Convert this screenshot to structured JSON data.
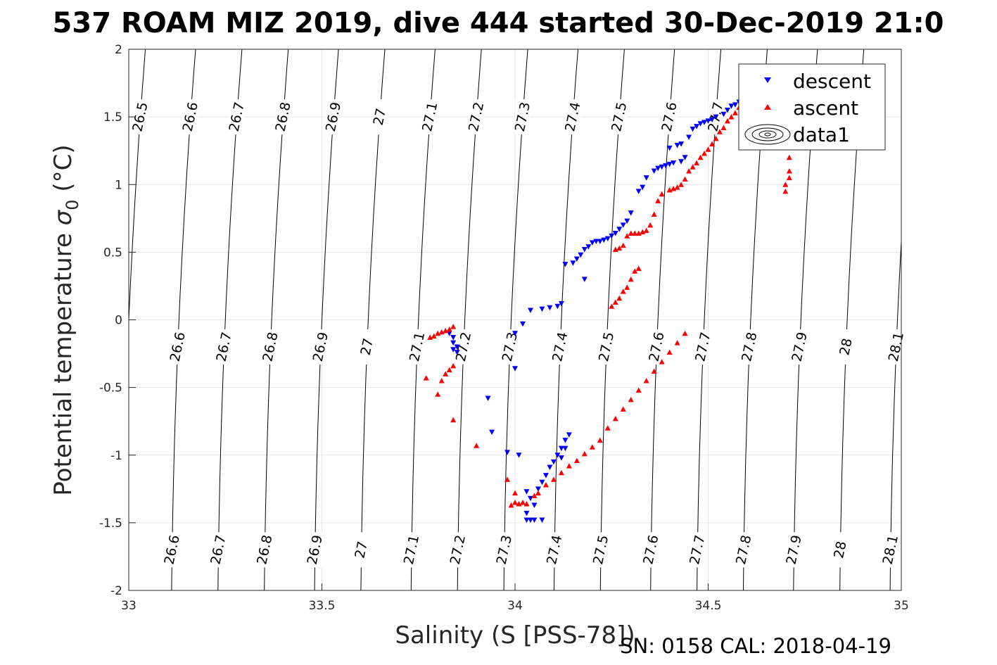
{
  "figure": {
    "title": "537 ROAM MIZ 2019, dive 444 started 30-Dec-2019 21:0",
    "footer": "SN: 0158  CAL: 2018-04-19"
  },
  "chart_data": {
    "type": "scatter",
    "title": "537 ROAM MIZ 2019, dive 444 started 30-Dec-2019 21:0",
    "xlabel": "Salinity (S [PSS-78])",
    "ylabel_main": "Potential temperature ",
    "ylabel_sigma": "σ",
    "ylabel_sub": "0",
    "ylabel_unit": " (°C)",
    "xlim": [
      33,
      35
    ],
    "ylim": [
      -2,
      2
    ],
    "xticks": [
      "33",
      "33.5",
      "34",
      "34.5",
      "35"
    ],
    "yticks": [
      "-2",
      "-1.5",
      "-1",
      "-0.5",
      "0",
      "0.5",
      "1",
      "1.5",
      "2"
    ],
    "grid": true,
    "legend_position": "top-right",
    "legend": [
      "descent",
      "ascent",
      "data1"
    ],
    "series": [
      {
        "name": "descent",
        "marker": "triangle-down",
        "color": "#0000ff",
        "points": [
          [
            34.62,
            1.64
          ],
          [
            34.6,
            1.63
          ],
          [
            34.58,
            1.61
          ],
          [
            34.57,
            1.59
          ],
          [
            34.56,
            1.58
          ],
          [
            34.55,
            1.55
          ],
          [
            34.54,
            1.52
          ],
          [
            34.52,
            1.5
          ],
          [
            34.51,
            1.48
          ],
          [
            34.5,
            1.47
          ],
          [
            34.49,
            1.46
          ],
          [
            34.48,
            1.45
          ],
          [
            34.47,
            1.43
          ],
          [
            34.46,
            1.41
          ],
          [
            34.45,
            1.35
          ],
          [
            34.43,
            1.3
          ],
          [
            34.42,
            1.29
          ],
          [
            34.4,
            1.27
          ],
          [
            34.44,
            1.2
          ],
          [
            34.43,
            1.17
          ],
          [
            34.41,
            1.16
          ],
          [
            34.4,
            1.15
          ],
          [
            34.39,
            1.14
          ],
          [
            34.38,
            1.13
          ],
          [
            34.37,
            1.12
          ],
          [
            34.36,
            1.1
          ],
          [
            34.34,
            1.05
          ],
          [
            34.33,
            0.98
          ],
          [
            34.32,
            0.95
          ],
          [
            34.3,
            0.79
          ],
          [
            34.29,
            0.73
          ],
          [
            34.28,
            0.7
          ],
          [
            34.27,
            0.67
          ],
          [
            34.26,
            0.64
          ],
          [
            34.25,
            0.62
          ],
          [
            34.24,
            0.6
          ],
          [
            34.23,
            0.59
          ],
          [
            34.22,
            0.58
          ],
          [
            34.21,
            0.58
          ],
          [
            34.2,
            0.57
          ],
          [
            34.19,
            0.54
          ],
          [
            34.18,
            0.52
          ],
          [
            34.17,
            0.48
          ],
          [
            34.16,
            0.45
          ],
          [
            34.15,
            0.42
          ],
          [
            34.13,
            0.41
          ],
          [
            34.18,
            0.3
          ],
          [
            34.12,
            0.12
          ],
          [
            34.11,
            0.1
          ],
          [
            34.09,
            0.09
          ],
          [
            34.07,
            0.08
          ],
          [
            34.04,
            0.07
          ],
          [
            34.02,
            -0.03
          ],
          [
            34.0,
            -0.1
          ],
          [
            34.0,
            -0.36
          ],
          [
            33.83,
            -0.1
          ],
          [
            33.84,
            -0.13
          ],
          [
            33.84,
            -0.17
          ],
          [
            33.85,
            -0.2
          ],
          [
            33.84,
            -0.22
          ],
          [
            33.85,
            -0.24
          ],
          [
            33.93,
            -0.58
          ],
          [
            33.94,
            -0.83
          ],
          [
            33.98,
            -0.98
          ],
          [
            34.01,
            -1.0
          ],
          [
            34.03,
            -1.27
          ],
          [
            34.04,
            -1.32
          ],
          [
            34.05,
            -1.37
          ],
          [
            34.03,
            -1.43
          ],
          [
            34.03,
            -1.48
          ],
          [
            34.04,
            -1.48
          ],
          [
            34.05,
            -1.48
          ],
          [
            34.07,
            -1.48
          ],
          [
            34.06,
            -1.25
          ],
          [
            34.07,
            -1.2
          ],
          [
            34.08,
            -1.15
          ],
          [
            34.09,
            -1.09
          ],
          [
            34.1,
            -1.05
          ],
          [
            34.11,
            -1.0
          ],
          [
            34.12,
            -0.95
          ],
          [
            34.13,
            -0.89
          ],
          [
            34.14,
            -0.85
          ],
          [
            34.12,
            -1.02
          ],
          [
            34.13,
            -0.95
          ]
        ]
      },
      {
        "name": "ascent",
        "marker": "triangle-up",
        "color": "#ff0000",
        "points": [
          [
            34.58,
            1.57
          ],
          [
            34.57,
            1.53
          ],
          [
            34.56,
            1.5
          ],
          [
            34.55,
            1.47
          ],
          [
            34.54,
            1.42
          ],
          [
            34.53,
            1.39
          ],
          [
            34.52,
            1.34
          ],
          [
            34.51,
            1.3
          ],
          [
            34.5,
            1.26
          ],
          [
            34.49,
            1.23
          ],
          [
            34.48,
            1.2
          ],
          [
            34.47,
            1.16
          ],
          [
            34.46,
            1.13
          ],
          [
            34.45,
            1.1
          ],
          [
            34.44,
            1.04
          ],
          [
            34.43,
            1.0
          ],
          [
            34.42,
            0.98
          ],
          [
            34.41,
            0.97
          ],
          [
            34.4,
            0.96
          ],
          [
            34.38,
            0.93
          ],
          [
            34.37,
            0.88
          ],
          [
            34.36,
            0.78
          ],
          [
            34.35,
            0.7
          ],
          [
            34.34,
            0.66
          ],
          [
            34.33,
            0.65
          ],
          [
            34.32,
            0.64
          ],
          [
            34.31,
            0.64
          ],
          [
            34.3,
            0.64
          ],
          [
            34.29,
            0.62
          ],
          [
            34.28,
            0.55
          ],
          [
            34.27,
            0.53
          ],
          [
            34.26,
            0.52
          ],
          [
            34.32,
            0.38
          ],
          [
            34.31,
            0.36
          ],
          [
            34.3,
            0.3
          ],
          [
            34.29,
            0.24
          ],
          [
            34.28,
            0.21
          ],
          [
            34.27,
            0.16
          ],
          [
            34.26,
            0.13
          ],
          [
            34.25,
            0.1
          ],
          [
            34.71,
            1.4
          ],
          [
            34.71,
            1.3
          ],
          [
            34.71,
            1.2
          ],
          [
            34.71,
            1.1
          ],
          [
            34.71,
            1.05
          ],
          [
            34.7,
            1.0
          ],
          [
            34.7,
            0.95
          ],
          [
            33.78,
            -0.13
          ],
          [
            33.79,
            -0.12
          ],
          [
            33.8,
            -0.1
          ],
          [
            33.81,
            -0.09
          ],
          [
            33.82,
            -0.08
          ],
          [
            33.83,
            -0.07
          ],
          [
            33.84,
            -0.05
          ],
          [
            33.84,
            -0.34
          ],
          [
            33.83,
            -0.37
          ],
          [
            33.82,
            -0.4
          ],
          [
            33.81,
            -0.45
          ],
          [
            33.77,
            -0.43
          ],
          [
            33.8,
            -0.55
          ],
          [
            33.84,
            -0.74
          ],
          [
            33.9,
            -0.93
          ],
          [
            33.98,
            -1.18
          ],
          [
            34.0,
            -1.28
          ],
          [
            33.99,
            -1.37
          ],
          [
            34.0,
            -1.35
          ],
          [
            34.01,
            -1.36
          ],
          [
            34.02,
            -1.35
          ],
          [
            34.03,
            -1.36
          ],
          [
            34.05,
            -1.3
          ],
          [
            34.06,
            -1.28
          ],
          [
            34.08,
            -1.22
          ],
          [
            34.1,
            -1.18
          ],
          [
            34.12,
            -1.13
          ],
          [
            34.14,
            -1.08
          ],
          [
            34.16,
            -1.04
          ],
          [
            34.18,
            -0.99
          ],
          [
            34.2,
            -0.94
          ],
          [
            34.22,
            -0.89
          ],
          [
            34.24,
            -0.8
          ],
          [
            34.26,
            -0.73
          ],
          [
            34.28,
            -0.66
          ],
          [
            34.3,
            -0.59
          ],
          [
            34.32,
            -0.52
          ],
          [
            34.34,
            -0.45
          ],
          [
            34.36,
            -0.38
          ],
          [
            34.38,
            -0.31
          ],
          [
            34.4,
            -0.24
          ],
          [
            34.42,
            -0.17
          ],
          [
            34.44,
            -0.1
          ]
        ]
      }
    ],
    "contours": [
      {
        "label": "26.5",
        "s0": 33.0
      },
      {
        "label": "26.6",
        "s0": 33.13
      },
      {
        "label": "26.7",
        "s0": 33.25
      },
      {
        "label": "26.8",
        "s0": 33.37
      },
      {
        "label": "26.9",
        "s0": 33.5
      },
      {
        "label": "27",
        "s0": 33.62
      },
      {
        "label": "27.1",
        "s0": 33.75
      },
      {
        "label": "27.2",
        "s0": 33.87
      },
      {
        "label": "27.3",
        "s0": 33.99
      },
      {
        "label": "27.4",
        "s0": 34.12
      },
      {
        "label": "27.5",
        "s0": 34.24
      },
      {
        "label": "27.6",
        "s0": 34.37
      },
      {
        "label": "27.7",
        "s0": 34.49
      },
      {
        "label": "27.8",
        "s0": 34.61
      },
      {
        "label": "27.9",
        "s0": 34.74
      },
      {
        "label": "28",
        "s0": 34.86
      },
      {
        "label": "28.1",
        "s0": 34.99
      }
    ]
  }
}
